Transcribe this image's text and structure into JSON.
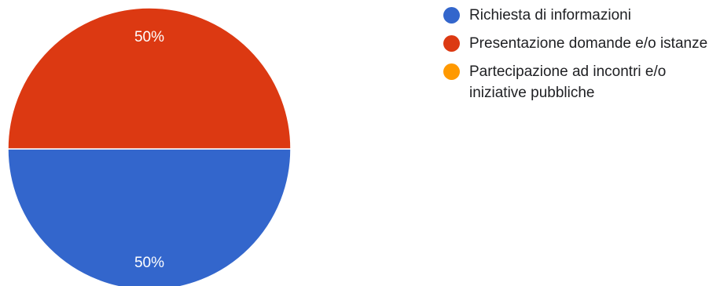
{
  "chart_data": {
    "type": "pie",
    "slices": [
      {
        "label": "Richiesta di informazioni",
        "value": 50,
        "percent_label": "50%",
        "color": "#3366cc"
      },
      {
        "label": "Presentazione domande e/o istanze",
        "value": 50,
        "percent_label": "50%",
        "color": "#dc3912"
      },
      {
        "label": "Partecipazione ad incontri e/o iniziative pubbliche",
        "value": 0,
        "percent_label": "",
        "color": "#ff9900"
      }
    ],
    "legend_position": "right"
  }
}
